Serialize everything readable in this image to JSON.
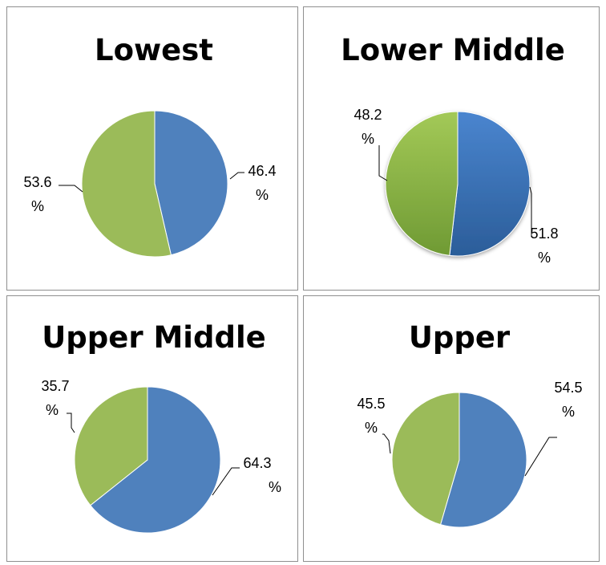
{
  "colors": {
    "blue": "#4f81bd",
    "green": "#9bbb59"
  },
  "chart_data": [
    {
      "type": "pie",
      "title": "Lowest",
      "slices": [
        {
          "category": "blue",
          "value": 46.4,
          "label_lines": [
            "46.4",
            "%"
          ]
        },
        {
          "category": "green",
          "value": 53.6,
          "label_lines": [
            "53.6",
            "%"
          ]
        }
      ]
    },
    {
      "type": "pie",
      "title": "Lower Middle",
      "slices": [
        {
          "category": "blue",
          "value": 51.8,
          "label_lines": [
            "51.8",
            "%"
          ]
        },
        {
          "category": "green",
          "value": 48.2,
          "label_lines": [
            "48.2",
            "%"
          ]
        }
      ]
    },
    {
      "type": "pie",
      "title": "Upper Middle",
      "slices": [
        {
          "category": "blue",
          "value": 64.3,
          "label_lines": [
            "64.3",
            "%"
          ]
        },
        {
          "category": "green",
          "value": 35.7,
          "label_lines": [
            "35.7",
            "%"
          ]
        }
      ]
    },
    {
      "type": "pie",
      "title": "Upper",
      "slices": [
        {
          "category": "blue",
          "value": 54.5,
          "label_lines": [
            "54.5",
            "%"
          ]
        },
        {
          "category": "green",
          "value": 45.5,
          "label_lines": [
            "45.5",
            "%"
          ]
        }
      ]
    }
  ]
}
